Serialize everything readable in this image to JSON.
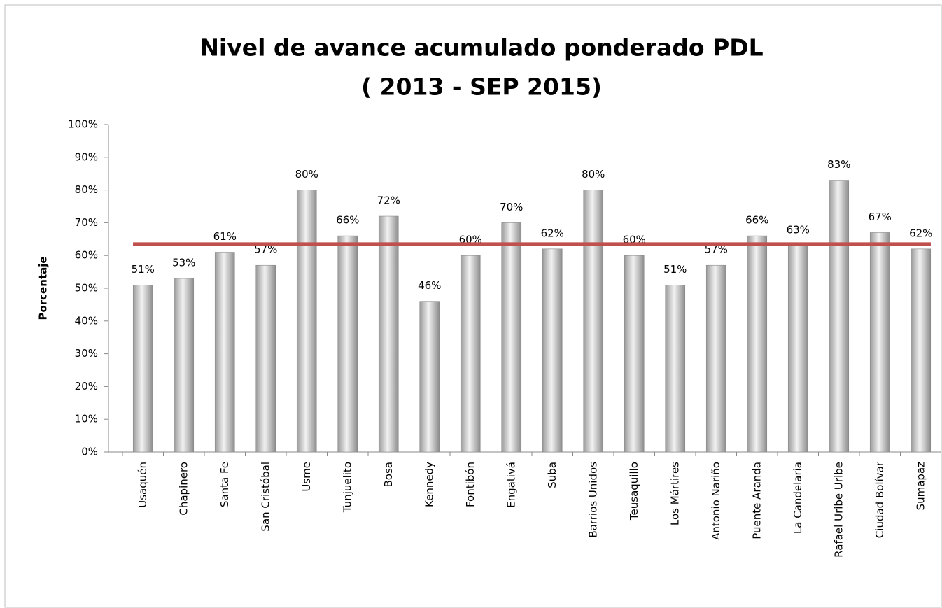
{
  "chart_data": {
    "type": "bar",
    "title": "Nivel de avance acumulado ponderado PDL",
    "subtitle": "( 2013 - SEP 2015)",
    "y_label": "Porcentaje",
    "categories": [
      "Usaquén",
      "Chapinero",
      "Santa Fe",
      "San Cristóbal",
      "Usme",
      "Tunjuelito",
      "Bosa",
      "Kennedy",
      "Fontibón",
      "Engativá",
      "Suba",
      "Barrios Unidos",
      "Teusaquillo",
      "Los Mártires",
      "Antonio Nariño",
      "Puente Aranda",
      "La Candelaria",
      "Rafael Uribe Uribe",
      "Ciudad Bolívar",
      "Sumapaz"
    ],
    "values": [
      51,
      53,
      61,
      57,
      80,
      66,
      72,
      46,
      60,
      70,
      62,
      80,
      60,
      51,
      57,
      66,
      63,
      83,
      67,
      62
    ],
    "value_labels": [
      "51%",
      "53%",
      "61%",
      "57%",
      "80%",
      "66%",
      "72%",
      "46%",
      "60%",
      "70%",
      "62%",
      "80%",
      "60%",
      "51%",
      "57%",
      "66%",
      "63%",
      "83%",
      "67%",
      "62%"
    ],
    "color": "#c8c8c8",
    "reference_line": {
      "value": 63.5,
      "color": "#c0504d"
    },
    "ylim": [
      0,
      100
    ],
    "yticks": [
      {
        "value": 0,
        "label": "0%"
      },
      {
        "value": 10,
        "label": "10%"
      },
      {
        "value": 20,
        "label": "20%"
      },
      {
        "value": 30,
        "label": "30%"
      },
      {
        "value": 40,
        "label": "40%"
      },
      {
        "value": 50,
        "label": "50%"
      },
      {
        "value": 60,
        "label": "60%"
      },
      {
        "value": 70,
        "label": "70%"
      },
      {
        "value": 80,
        "label": "80%"
      },
      {
        "value": 90,
        "label": "90%"
      },
      {
        "value": 100,
        "label": "100%"
      }
    ],
    "grid": false
  }
}
